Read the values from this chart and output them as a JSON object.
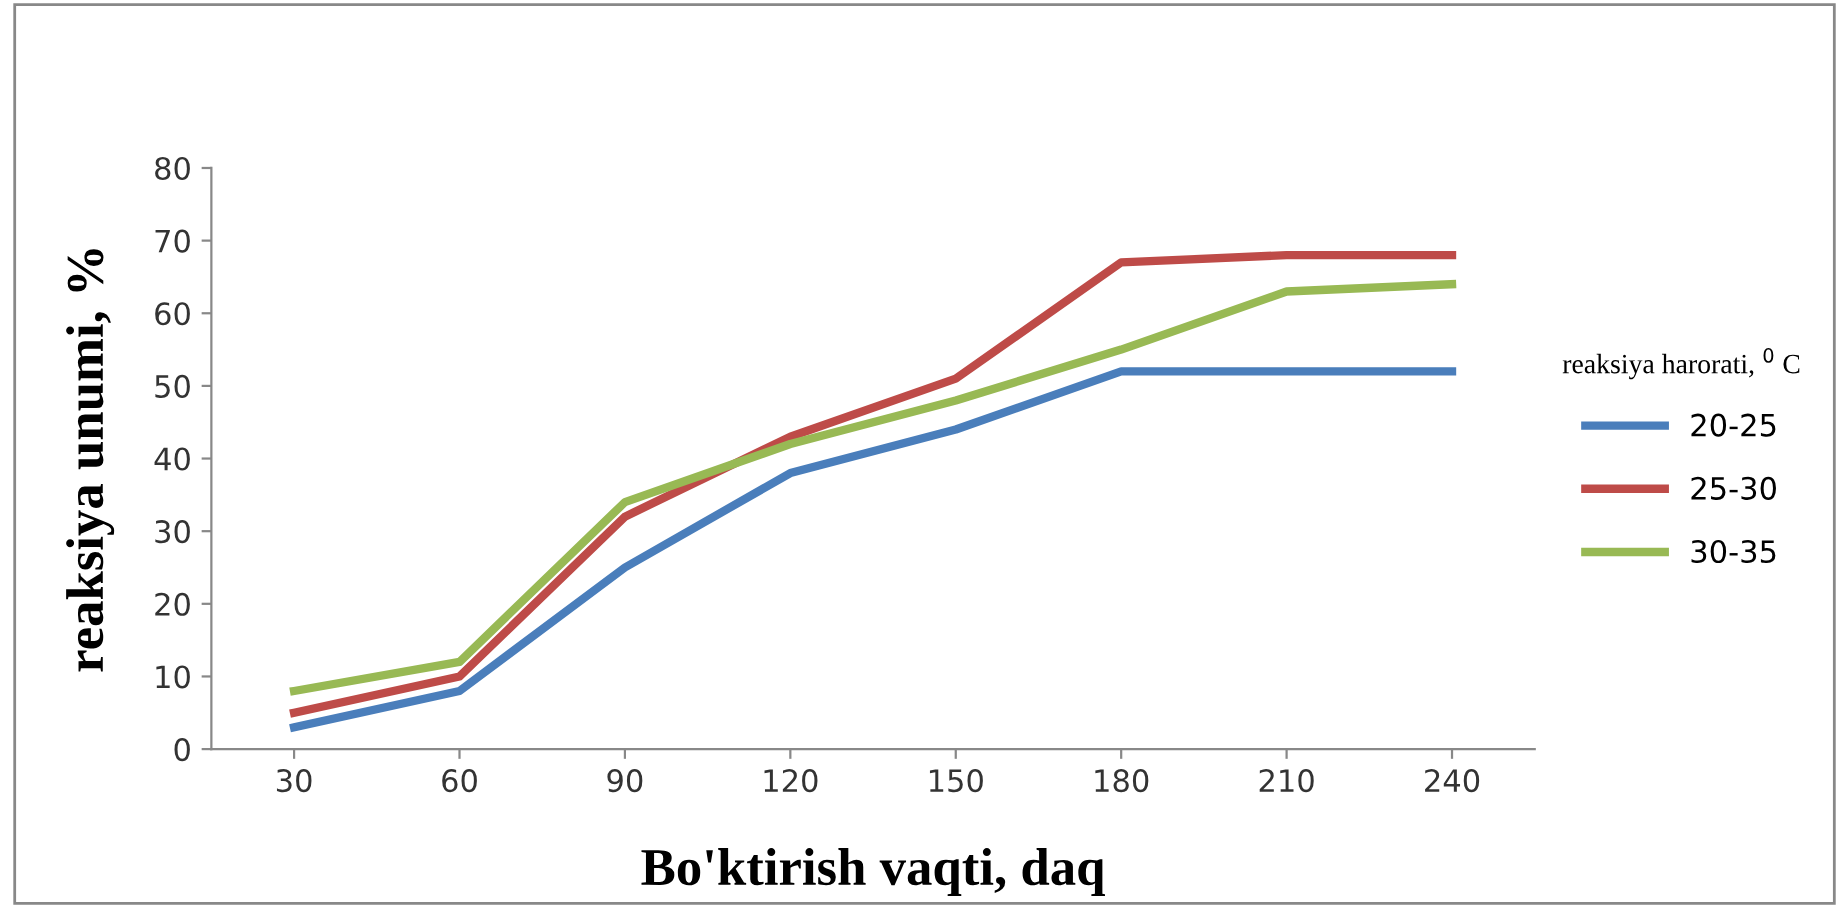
{
  "chart_data": {
    "type": "line",
    "xlabel": "Bo'ktirish vaqti, daq",
    "ylabel": "reaksiya unumi, %",
    "legend_title": "reaksiya harorati, $^{0}$ C",
    "categories": [
      "30",
      "60",
      "90",
      "120",
      "150",
      "180",
      "210",
      "240"
    ],
    "series": [
      {
        "name": "20-25",
        "color": "#4a7ebb",
        "values": [
          3,
          8,
          25,
          38,
          44,
          52,
          52,
          52
        ]
      },
      {
        "name": "25-30",
        "color": "#be4b48",
        "values": [
          5,
          10,
          32,
          43,
          51,
          67,
          68,
          68
        ]
      },
      {
        "name": "30-35",
        "color": "#98b954",
        "values": [
          8,
          12,
          34,
          42,
          48,
          55,
          63,
          64
        ]
      }
    ],
    "ylim": [
      0,
      80
    ],
    "yticks": [
      0,
      10,
      20,
      30,
      40,
      50,
      60,
      70,
      80
    ],
    "grid": false,
    "legend": "right",
    "marker": "none",
    "line_style": "solid"
  }
}
